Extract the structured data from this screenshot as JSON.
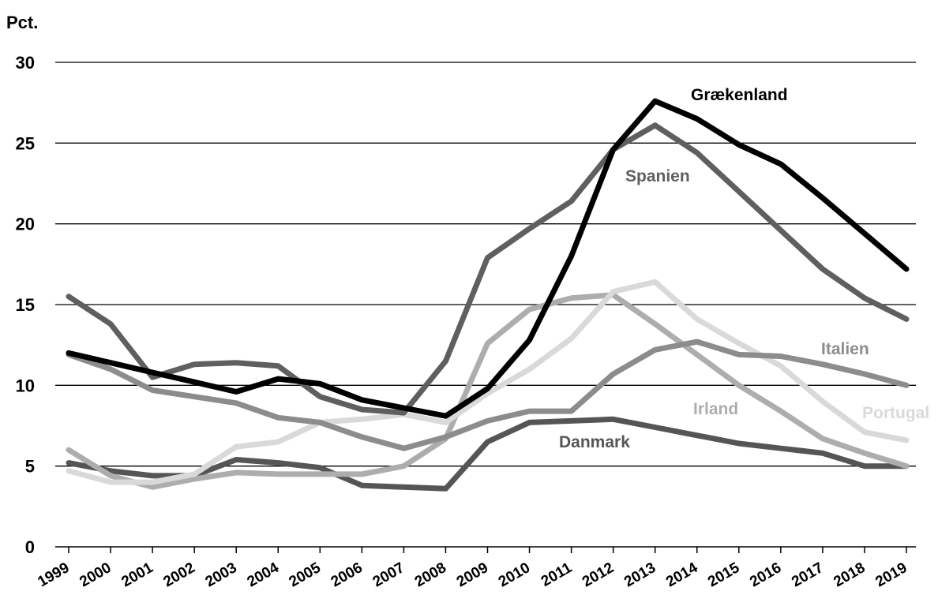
{
  "chart_data": {
    "type": "line",
    "title": "",
    "xlabel": "",
    "ylabel": "Pct.",
    "ylim": [
      0,
      30
    ],
    "y_ticks": [
      0,
      5,
      10,
      15,
      20,
      25,
      30
    ],
    "grid": true,
    "legend": "inline",
    "x": [
      "1999",
      "2000",
      "2001",
      "2002",
      "2003",
      "2004",
      "2005",
      "2006",
      "2007",
      "2008",
      "2009",
      "2010",
      "2011",
      "2012",
      "2013",
      "2014",
      "2015",
      "2016",
      "2017",
      "2018",
      "2019"
    ],
    "series": [
      {
        "name": "Grækenland",
        "color": "#000000",
        "values": [
          12.0,
          11.4,
          10.8,
          10.2,
          9.6,
          10.4,
          10.1,
          9.1,
          8.6,
          8.1,
          9.8,
          12.8,
          18.0,
          24.6,
          27.6,
          26.5,
          24.9,
          23.7,
          21.6,
          19.4,
          17.2
        ]
      },
      {
        "name": "Spanien",
        "color": "#5f5f5f",
        "values": [
          15.5,
          13.8,
          10.5,
          11.3,
          11.4,
          11.2,
          9.3,
          8.5,
          8.3,
          11.5,
          17.9,
          19.7,
          21.4,
          24.6,
          26.1,
          24.4,
          22.0,
          19.6,
          17.2,
          15.4,
          14.1
        ]
      },
      {
        "name": "Italien",
        "color": "#8c8c8c",
        "values": [
          11.9,
          11.0,
          9.7,
          9.3,
          8.9,
          8.0,
          7.7,
          6.8,
          6.1,
          6.8,
          7.8,
          8.4,
          8.4,
          10.7,
          12.2,
          12.7,
          11.9,
          11.8,
          11.3,
          10.7,
          10.0
        ]
      },
      {
        "name": "Irland",
        "color": "#adadad",
        "values": [
          6.0,
          4.4,
          3.7,
          4.2,
          4.6,
          4.5,
          4.5,
          4.5,
          5.0,
          6.7,
          12.6,
          14.7,
          15.4,
          15.6,
          13.8,
          11.9,
          10.0,
          8.4,
          6.7,
          5.8,
          5.0
        ]
      },
      {
        "name": "Portugal",
        "color": "#d9d9d9",
        "values": [
          4.7,
          4.0,
          4.0,
          4.5,
          6.2,
          6.5,
          7.7,
          7.9,
          8.2,
          7.7,
          9.5,
          11.0,
          12.9,
          15.8,
          16.4,
          14.1,
          12.6,
          11.2,
          9.0,
          7.1,
          6.6
        ]
      },
      {
        "name": "Danmark",
        "color": "#555555",
        "values": [
          5.2,
          4.7,
          4.4,
          4.4,
          5.4,
          5.2,
          4.9,
          3.8,
          3.7,
          3.6,
          6.5,
          7.7,
          7.8,
          7.9,
          7.4,
          6.9,
          6.4,
          6.1,
          5.8,
          5.0,
          5.0
        ]
      }
    ]
  }
}
